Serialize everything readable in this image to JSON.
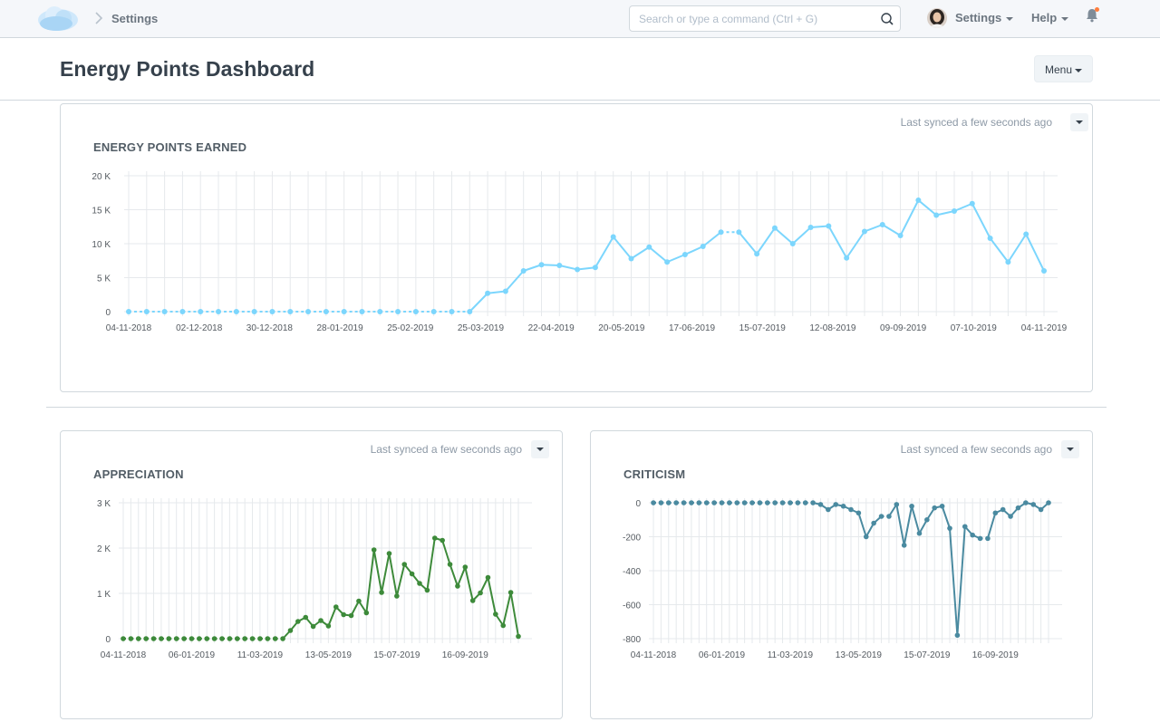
{
  "navbar": {
    "breadcrumb": "Settings",
    "search_placeholder": "Search or type a command (Ctrl + G)",
    "settings_label": "Settings",
    "help_label": "Help",
    "icons": [
      "cloud-logo-icon",
      "chevron-right-icon",
      "search-icon",
      "user-avatar",
      "bell-icon"
    ]
  },
  "page": {
    "title": "Energy Points Dashboard",
    "menu_label": "Menu"
  },
  "colors": {
    "earned": "#7cd6fd",
    "appreciation": "#3d8a3a",
    "criticism": "#4a8aa0"
  },
  "widgets": [
    {
      "title": "ENERGY POINTS EARNED",
      "sync": "Last synced a few seconds ago"
    },
    {
      "title": "APPRECIATION",
      "sync": "Last synced a few seconds ago"
    },
    {
      "title": "CRITICISM",
      "sync": "Last synced a few seconds ago"
    }
  ],
  "chart_data": [
    {
      "type": "line",
      "title": "ENERGY POINTS EARNED",
      "ylim": [
        0,
        20000
      ],
      "yticks": [
        "0",
        "5 K",
        "10 K",
        "15 K",
        "20 K"
      ],
      "ytick_values": [
        0,
        5000,
        10000,
        15000,
        20000
      ],
      "xtick_labels": [
        "04-11-2018",
        "02-12-2018",
        "30-12-2018",
        "28-01-2019",
        "25-02-2019",
        "25-03-2019",
        "22-04-2019",
        "20-05-2019",
        "17-06-2019",
        "15-07-2019",
        "12-08-2019",
        "09-09-2019",
        "07-10-2019",
        "04-11-2019"
      ],
      "grid": true,
      "series": [
        {
          "values": [
            0,
            0,
            0,
            0,
            0,
            0,
            0,
            0,
            0,
            0,
            0,
            0,
            0,
            0,
            0,
            0,
            0,
            0,
            0,
            0,
            2700,
            3000,
            6000,
            6900,
            6800,
            6200,
            6500,
            11000,
            7800,
            9500,
            7300,
            8400,
            9600,
            11700,
            11700,
            8500,
            12300,
            10000,
            12400,
            12600,
            7900,
            11800,
            12800,
            11200,
            16400,
            14200,
            14800,
            15900,
            10800,
            7300,
            11400,
            6000
          ]
        }
      ]
    },
    {
      "type": "line",
      "title": "APPRECIATION",
      "ylim": [
        0,
        3000
      ],
      "yticks": [
        "0",
        "1 K",
        "2 K",
        "3 K"
      ],
      "ytick_values": [
        0,
        1000,
        2000,
        3000
      ],
      "xtick_labels": [
        "04-11-2018",
        "06-01-2019",
        "11-03-2019",
        "13-05-2019",
        "15-07-2019",
        "16-09-2019"
      ],
      "grid": true,
      "series": [
        {
          "values": [
            0,
            0,
            0,
            0,
            0,
            0,
            0,
            0,
            0,
            0,
            0,
            0,
            0,
            0,
            0,
            0,
            0,
            0,
            0,
            0,
            0,
            0,
            180,
            380,
            470,
            270,
            400,
            280,
            700,
            530,
            510,
            830,
            570,
            1960,
            1020,
            1880,
            940,
            1640,
            1430,
            1220,
            1070,
            2220,
            2170,
            1640,
            1160,
            1580,
            840,
            1010,
            1350,
            540,
            290,
            1020,
            50
          ]
        }
      ]
    },
    {
      "type": "line",
      "title": "CRITICISM",
      "ylim": [
        -800,
        0
      ],
      "yticks": [
        "0",
        "-200",
        "-400",
        "-600",
        "-800"
      ],
      "ytick_values": [
        0,
        -200,
        -400,
        -600,
        -800
      ],
      "xtick_labels": [
        "04-11-2018",
        "06-01-2019",
        "11-03-2019",
        "13-05-2019",
        "15-07-2019",
        "16-09-2019"
      ],
      "grid": true,
      "series": [
        {
          "values": [
            0,
            0,
            0,
            0,
            0,
            0,
            0,
            0,
            0,
            0,
            0,
            0,
            0,
            0,
            0,
            0,
            0,
            0,
            0,
            0,
            0,
            0,
            -10,
            -40,
            -10,
            -20,
            -40,
            -60,
            -200,
            -120,
            -80,
            -80,
            -10,
            -250,
            -20,
            -180,
            -100,
            -30,
            -20,
            -150,
            -780,
            -140,
            -190,
            -210,
            -210,
            -60,
            -40,
            -80,
            -30,
            0,
            -10,
            -40,
            0
          ]
        }
      ]
    }
  ]
}
